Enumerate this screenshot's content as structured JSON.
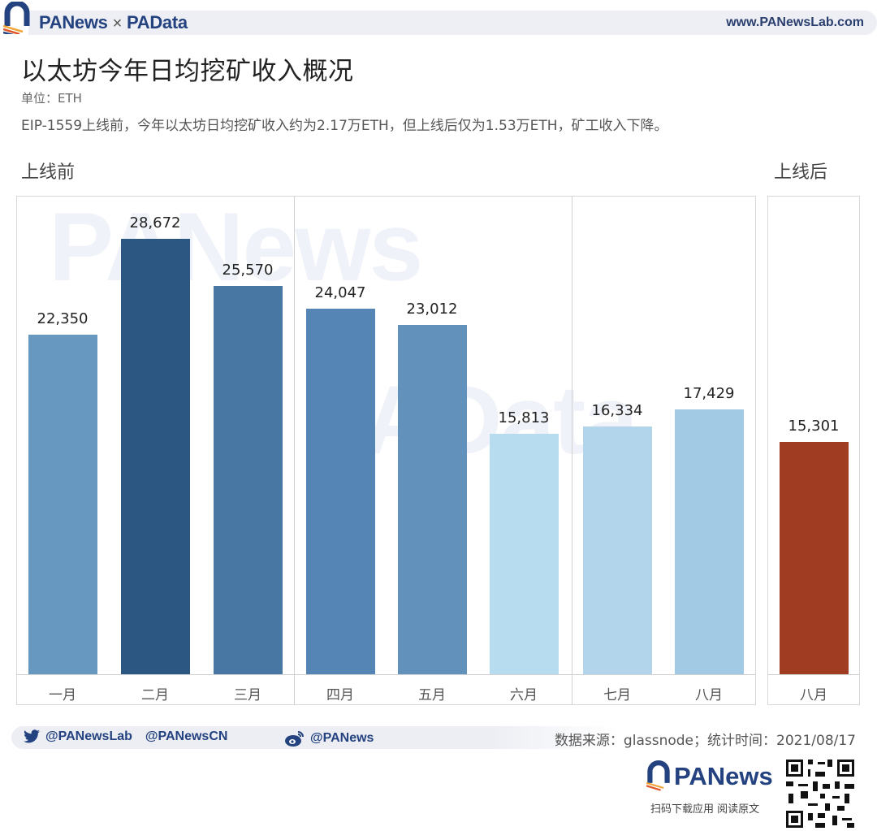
{
  "header": {
    "brand_left": "PANews",
    "brand_sep": "×",
    "brand_right": "PAData",
    "site_url": "www.PANewsLab.com"
  },
  "title": "以太坊今年日均挖矿收入概况",
  "unit": "单位：ETH",
  "subtitle": "EIP-1559上线前，今年以太坊日均挖矿收入约为2.17万ETH，但上线后仅为1.53万ETH，矿工收入下降。",
  "sections": {
    "before": "上线前",
    "after": "上线后"
  },
  "watermarks": [
    "PANews",
    "PAData"
  ],
  "bars": [
    {
      "label": "一月",
      "value": 22350,
      "display": "22,350",
      "color": "#6698c0"
    },
    {
      "label": "二月",
      "value": 28672,
      "display": "28,672",
      "color": "#2b5782"
    },
    {
      "label": "三月",
      "value": 25570,
      "display": "25,570",
      "color": "#4977a3"
    },
    {
      "label": "四月",
      "value": 24047,
      "display": "24,047",
      "color": "#5585b4"
    },
    {
      "label": "五月",
      "value": 23012,
      "display": "23,012",
      "color": "#6292bb"
    },
    {
      "label": "六月",
      "value": 15813,
      "display": "15,813",
      "color": "#b8dcef"
    },
    {
      "label": "七月",
      "value": 16334,
      "display": "16,334",
      "color": "#b2d5ec"
    },
    {
      "label": "八月",
      "value": 17429,
      "display": "17,429",
      "color": "#a2cae5"
    },
    {
      "label": "八月",
      "value": 15301,
      "display": "15,301",
      "color": "#a03c22"
    }
  ],
  "chart_data": {
    "type": "bar",
    "title": "以太坊今年日均挖矿收入概况",
    "subtitle": "EIP-1559上线前，今年以太坊日均挖矿收入约为2.17万ETH，但上线后仅为1.53万ETH，矿工收入下降。",
    "xlabel": "",
    "ylabel": "ETH",
    "unit": "ETH",
    "categories": [
      "一月",
      "二月",
      "三月",
      "四月",
      "五月",
      "六月",
      "七月",
      "八月(上线前)",
      "八月(上线后)"
    ],
    "series": [
      {
        "name": "上线前",
        "values": [
          22350,
          28672,
          25570,
          24047,
          23012,
          15813,
          16334,
          17429,
          null
        ]
      },
      {
        "name": "上线后",
        "values": [
          null,
          null,
          null,
          null,
          null,
          null,
          null,
          null,
          15301
        ]
      }
    ],
    "panels": [
      {
        "name": "上线前",
        "categories": [
          "一月",
          "二月",
          "三月",
          "四月",
          "五月",
          "六月",
          "七月",
          "八月"
        ],
        "values": [
          22350,
          28672,
          25570,
          24047,
          23012,
          15813,
          16334,
          17429
        ]
      },
      {
        "name": "上线后",
        "categories": [
          "八月"
        ],
        "values": [
          15301
        ]
      }
    ],
    "data_labels": true,
    "grid": false,
    "ylim": [
      0,
      30000
    ],
    "legend": null
  },
  "footer": {
    "twitter_1": "@PANewsLab",
    "twitter_2": "@PANewsCN",
    "weibo": "@PANews",
    "source": "数据来源：glassnode；统计时间：2021/08/17",
    "bottom_brand": "PANews",
    "bottom_caption": "扫码下载应用  阅读原文",
    "wechat_overlay": "PANews"
  },
  "icons": {
    "twitter": "twitter-bird-icon",
    "weibo": "weibo-icon",
    "logo": "panews-arch-logo-icon",
    "qr": "qr-code-icon"
  }
}
